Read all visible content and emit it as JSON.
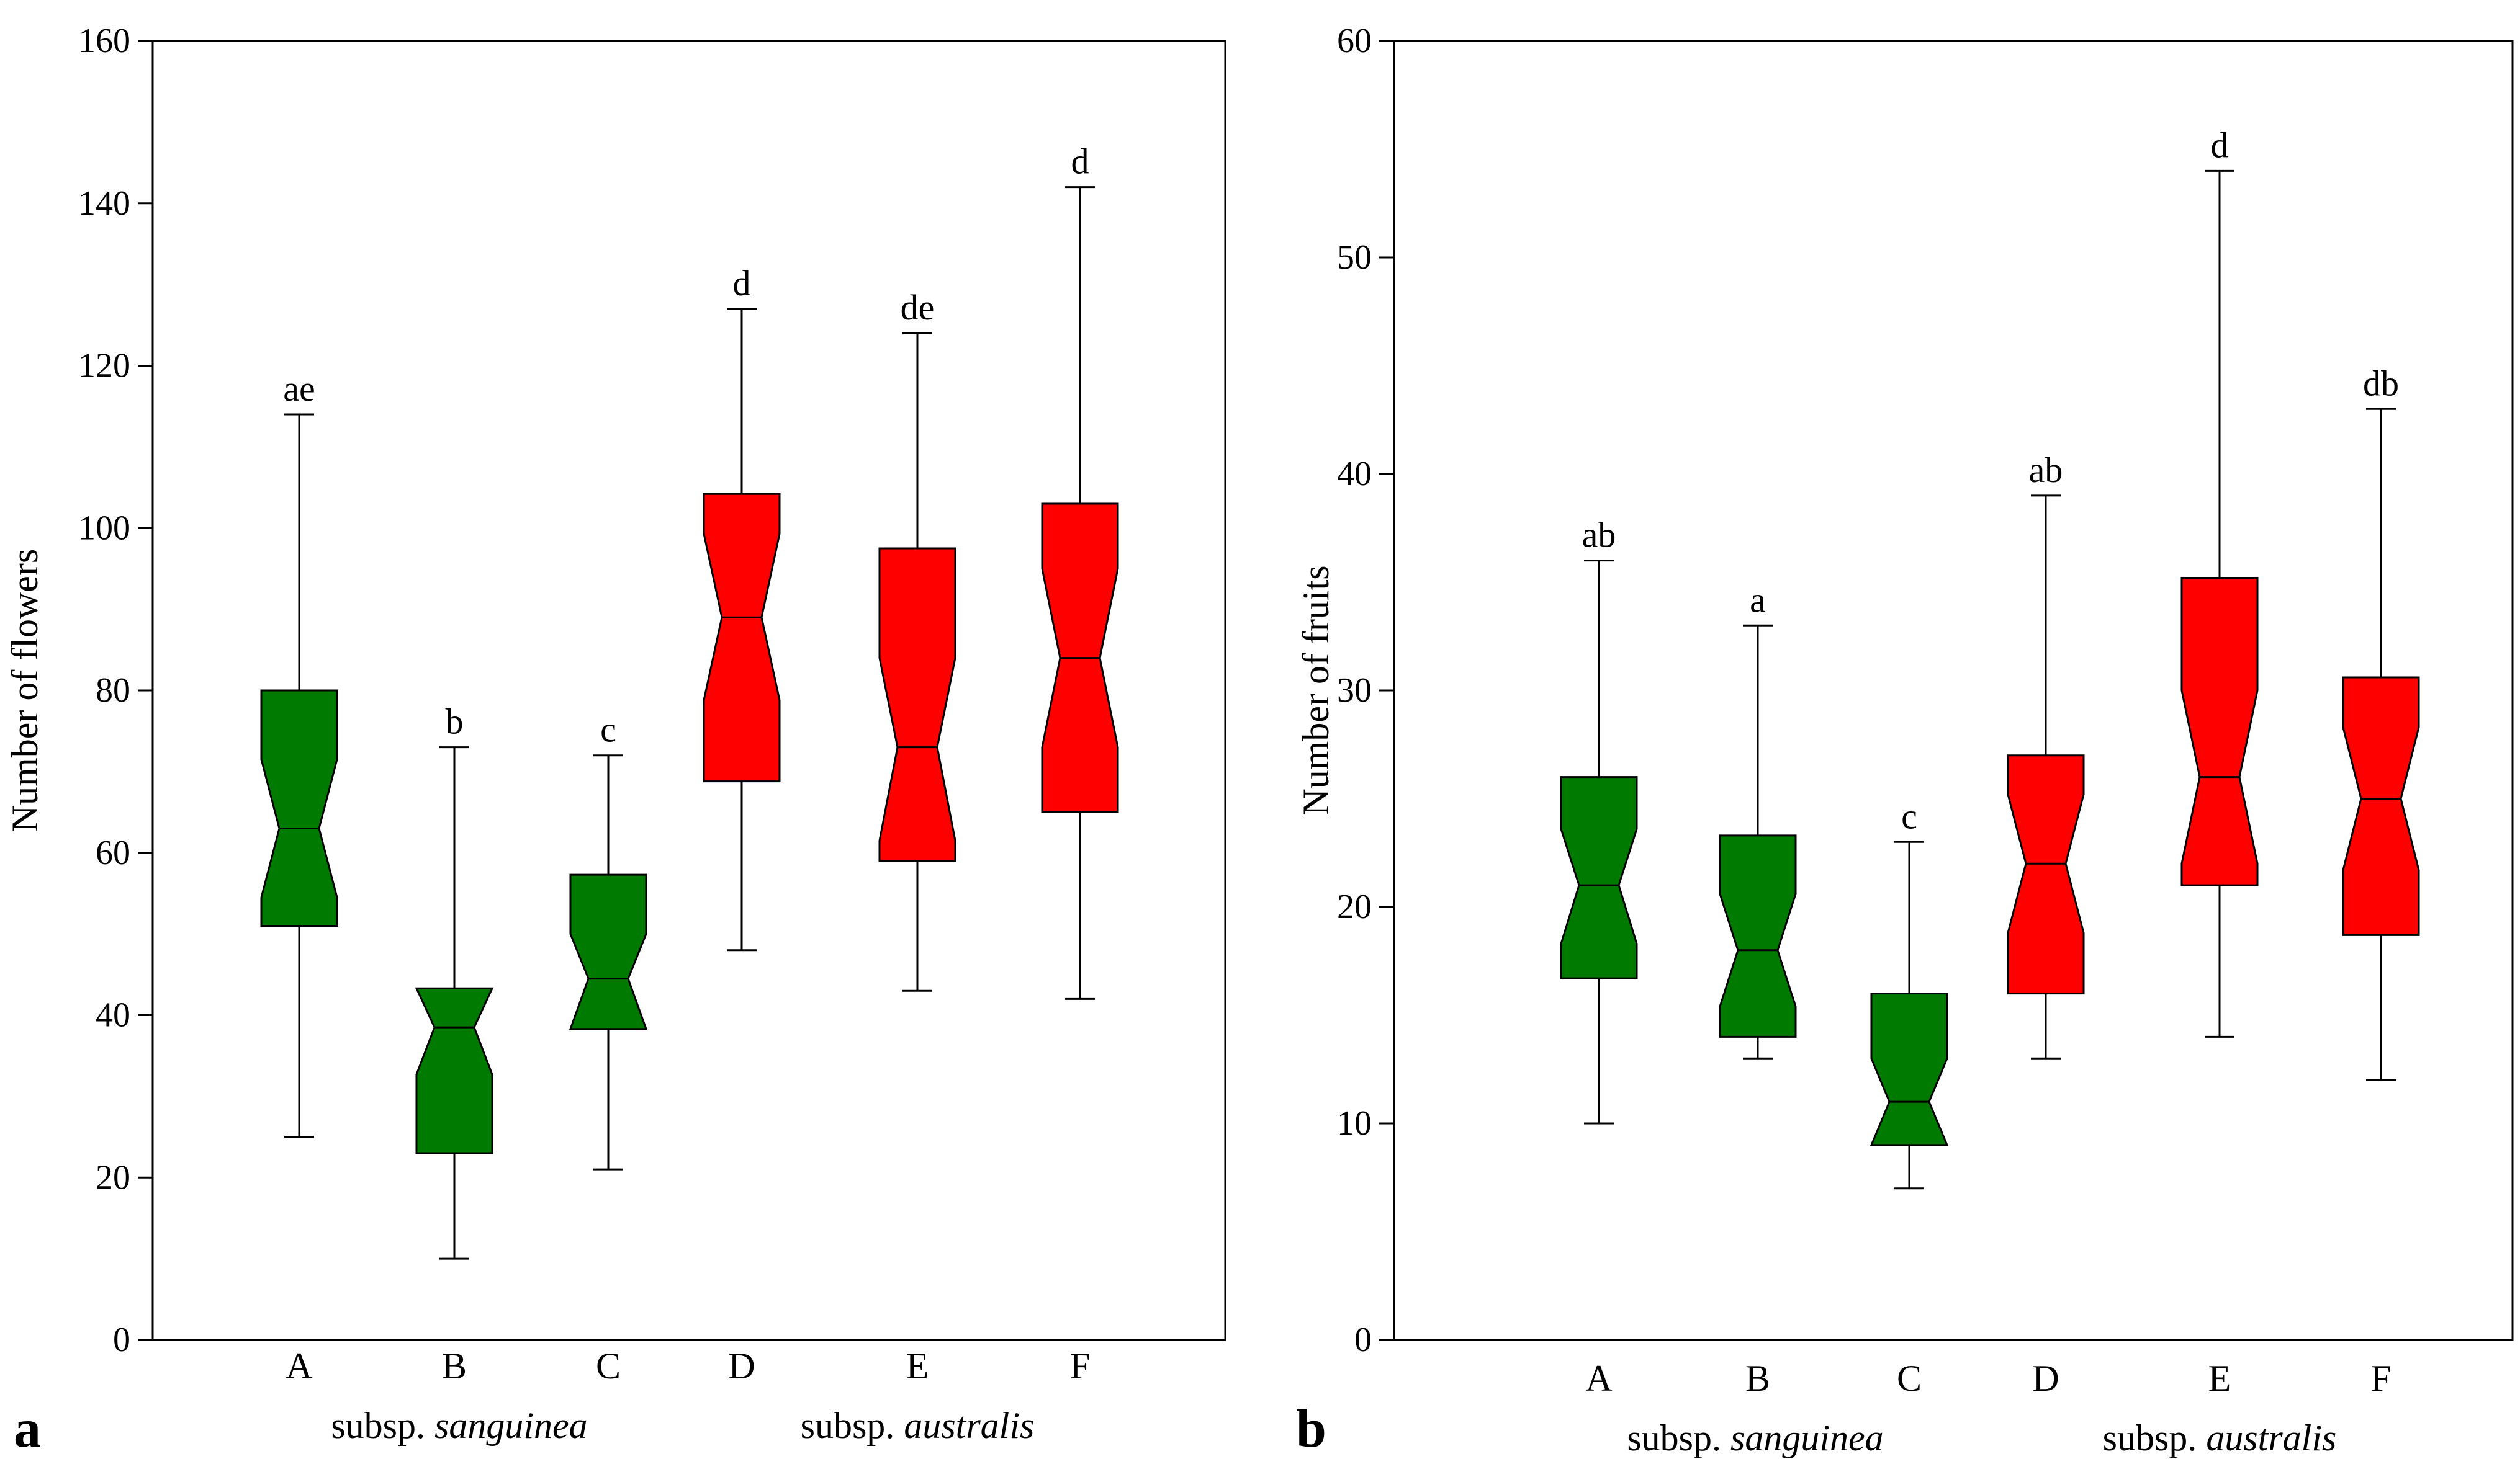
{
  "chart_data": [
    {
      "type": "box",
      "notched": true,
      "panel_label": "a",
      "ylabel": "Number of flowers",
      "ylim": [
        0,
        160
      ],
      "yticks": [
        "0",
        "20",
        "40",
        "60",
        "80",
        "100",
        "120",
        "140",
        "160"
      ],
      "categories": [
        "A",
        "B",
        "C",
        "D",
        "E",
        "F"
      ],
      "groups": [
        {
          "label_prefix": "subsp. ",
          "label_italic": "sanguinea",
          "color": "#007a00"
        },
        {
          "label_prefix": "subsp. ",
          "label_italic": "australis",
          "color": "#ff0000"
        }
      ],
      "boxes": [
        {
          "cat": "A",
          "min": 25,
          "q1": 51,
          "median": 63,
          "q3": 80,
          "max": 114,
          "notch_low": 54.5,
          "notch_high": 71.5,
          "letter": "ae",
          "color": "#007a00"
        },
        {
          "cat": "B",
          "min": 10,
          "q1": 23,
          "median": 38.5,
          "q3": 43.3,
          "max": 73,
          "notch_low": 32.7,
          "notch_high": 43.3,
          "letter": "b",
          "color": "#007a00"
        },
        {
          "cat": "C",
          "min": 21,
          "q1": 38.3,
          "median": 44.5,
          "q3": 57.3,
          "max": 72,
          "notch_low": 38.3,
          "notch_high": 50,
          "letter": "c",
          "color": "#007a00"
        },
        {
          "cat": "D",
          "min": 48,
          "q1": 68.8,
          "median": 89,
          "q3": 104.2,
          "max": 127,
          "notch_low": 78.8,
          "notch_high": 99.3,
          "letter": "d",
          "color": "#ff0000"
        },
        {
          "cat": "E",
          "min": 43,
          "q1": 59,
          "median": 73,
          "q3": 97.5,
          "max": 124,
          "notch_low": 61.5,
          "notch_high": 84,
          "letter": "de",
          "color": "#ff0000"
        },
        {
          "cat": "F",
          "min": 42,
          "q1": 65,
          "median": 84,
          "q3": 103,
          "max": 142,
          "notch_low": 73,
          "notch_high": 95,
          "letter": "d",
          "color": "#ff0000"
        }
      ]
    },
    {
      "type": "box",
      "notched": true,
      "panel_label": "b",
      "ylabel": "Number of fruits",
      "ylim": [
        0,
        60
      ],
      "yticks": [
        "0",
        "10",
        "20",
        "30",
        "40",
        "50",
        "60"
      ],
      "categories": [
        "A",
        "B",
        "C",
        "D",
        "E",
        "F"
      ],
      "groups": [
        {
          "label_prefix": "subsp. ",
          "label_italic": "sanguinea",
          "color": "#007a00"
        },
        {
          "label_prefix": "subsp. ",
          "label_italic": "australis",
          "color": "#ff0000"
        }
      ],
      "boxes": [
        {
          "cat": "A",
          "min": 10,
          "q1": 16.7,
          "median": 21,
          "q3": 26,
          "max": 36,
          "notch_low": 18.3,
          "notch_high": 23.6,
          "letter": "ab",
          "color": "#007a00"
        },
        {
          "cat": "B",
          "min": 13,
          "q1": 14,
          "median": 18,
          "q3": 23.3,
          "max": 33,
          "notch_low": 15.4,
          "notch_high": 20.6,
          "letter": "a",
          "color": "#007a00"
        },
        {
          "cat": "C",
          "min": 7,
          "q1": 9,
          "median": 11,
          "q3": 16,
          "max": 23,
          "notch_low": 9,
          "notch_high": 13,
          "letter": "c",
          "color": "#007a00"
        },
        {
          "cat": "D",
          "min": 13,
          "q1": 16,
          "median": 22,
          "q3": 27,
          "max": 39,
          "notch_low": 18.8,
          "notch_high": 25.2,
          "letter": "ab",
          "color": "#ff0000"
        },
        {
          "cat": "E",
          "min": 14,
          "q1": 21,
          "median": 26,
          "q3": 35.2,
          "max": 54,
          "notch_low": 22,
          "notch_high": 30,
          "letter": "d",
          "color": "#ff0000"
        },
        {
          "cat": "F",
          "min": 12,
          "q1": 18.7,
          "median": 25,
          "q3": 30.6,
          "max": 43,
          "notch_low": 21.7,
          "notch_high": 28.3,
          "letter": "db",
          "color": "#ff0000"
        }
      ]
    }
  ]
}
